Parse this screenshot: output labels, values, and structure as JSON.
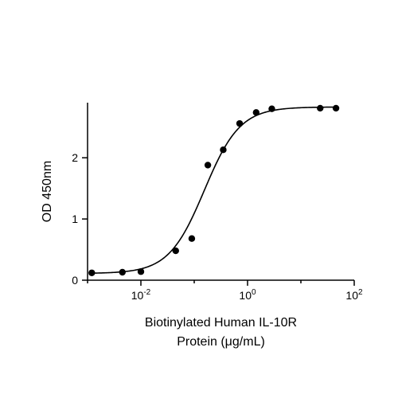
{
  "chart_data": {
    "type": "scatter",
    "title": "",
    "xlabel_line1": "Biotinylated Human IL-10R",
    "xlabel_line2": "Protein (μg/mL)",
    "ylabel": "OD 450nm",
    "x_scale": "log",
    "xlim": [
      0.001,
      100
    ],
    "ylim": [
      0,
      2.9
    ],
    "x_ticks": [
      {
        "base": "10",
        "exp": "-2",
        "value": 0.01
      },
      {
        "base": "10",
        "exp": "0",
        "value": 1
      },
      {
        "base": "10",
        "exp": "2",
        "value": 100
      }
    ],
    "y_ticks": [
      {
        "label": "0",
        "value": 0
      },
      {
        "label": "1",
        "value": 1
      },
      {
        "label": "2",
        "value": 2
      }
    ],
    "grid": false,
    "legend": false,
    "series": [
      {
        "x": [
          0.0012,
          0.0045,
          0.01,
          0.045,
          0.09,
          0.18,
          0.35,
          0.71,
          1.45,
          2.85,
          23.0,
          45.5
        ],
        "y": [
          0.12,
          0.13,
          0.14,
          0.48,
          0.68,
          1.88,
          2.13,
          2.56,
          2.74,
          2.8,
          2.81,
          2.81
        ]
      }
    ],
    "fit": {
      "model": "4PL",
      "bottom": 0.11,
      "top": 2.83,
      "ec50": 0.155,
      "hill": 1.3
    }
  }
}
